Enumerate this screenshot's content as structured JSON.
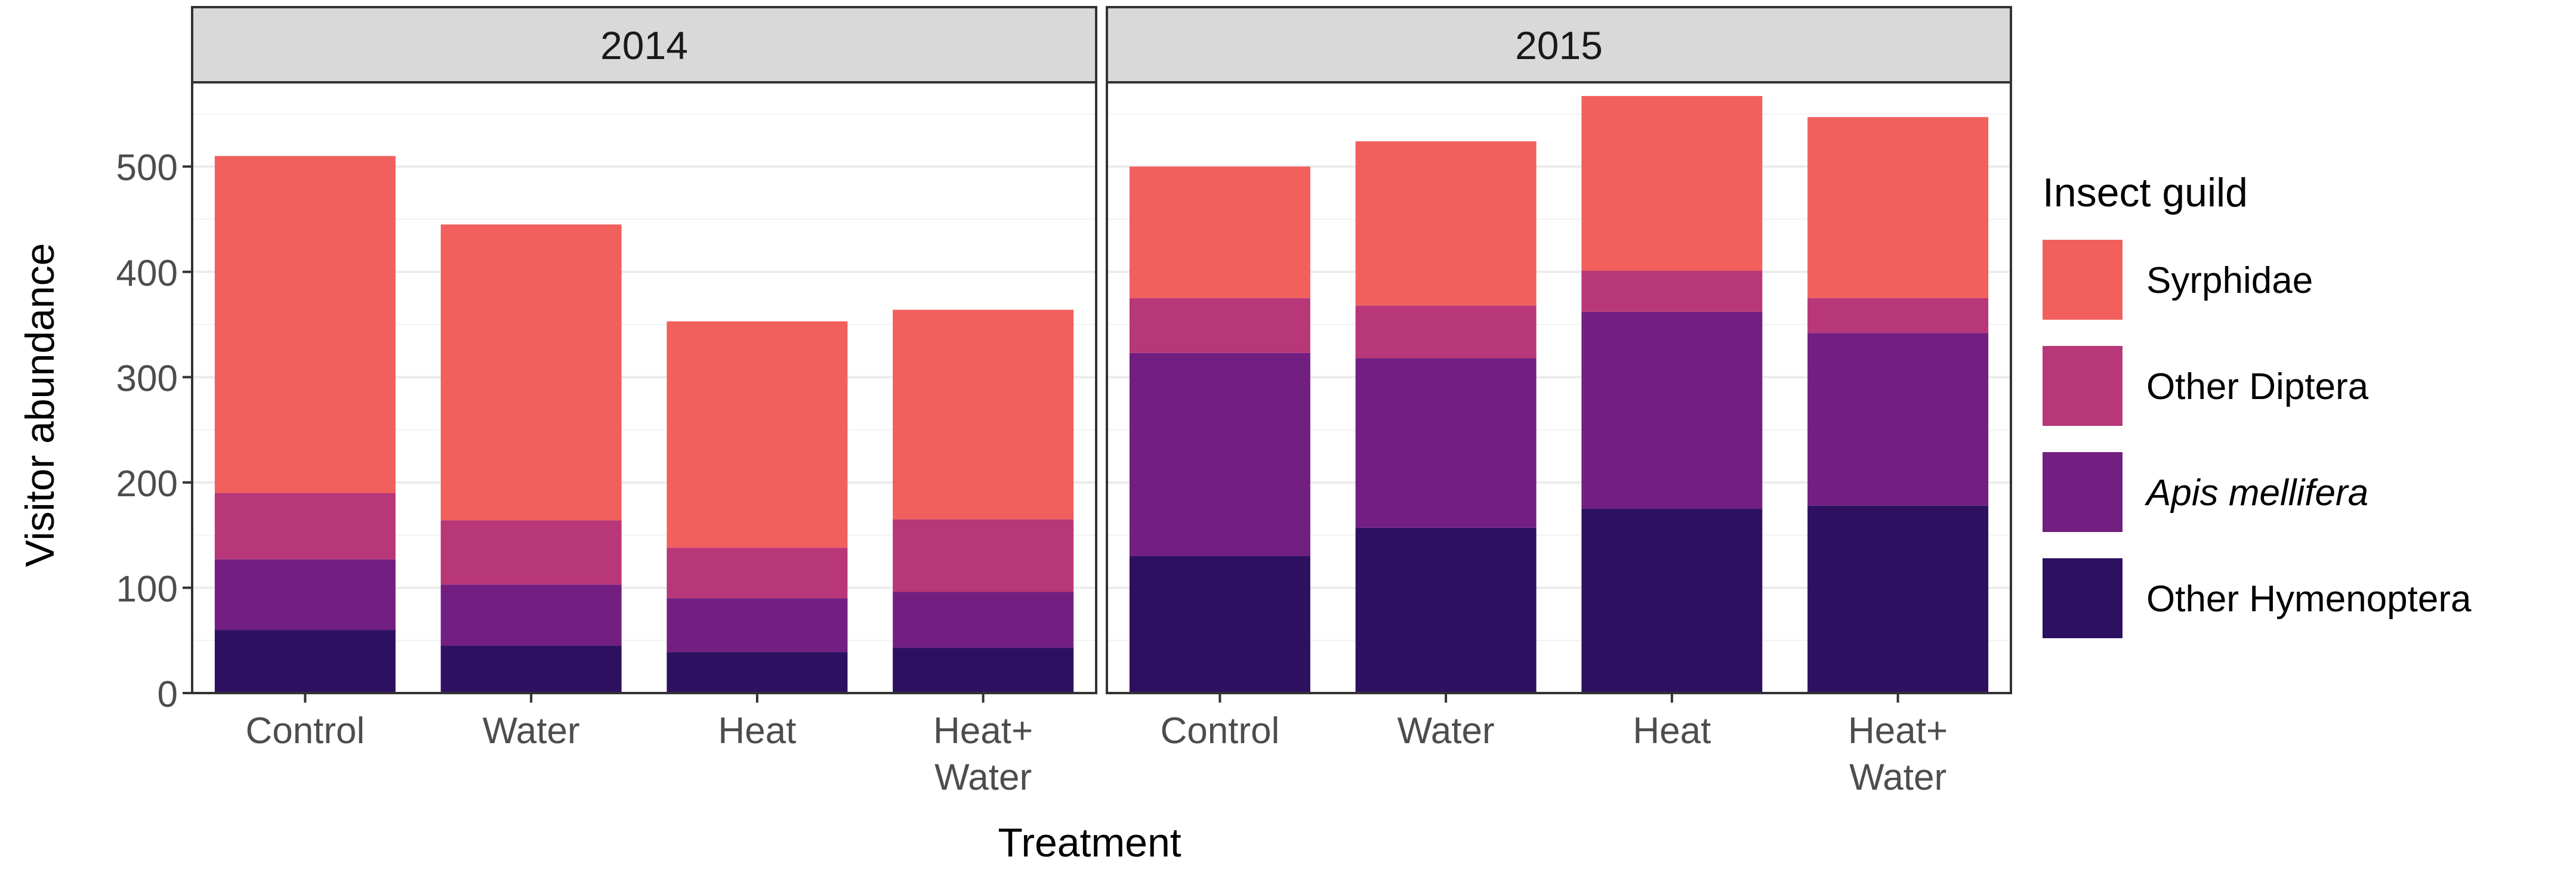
{
  "chart_data": {
    "type": "bar",
    "stacked": true,
    "xlabel": "Treatment",
    "ylabel": "Visitor abundance",
    "ylim": [
      0,
      580
    ],
    "yticks": [
      0,
      100,
      200,
      300,
      400,
      500
    ],
    "categories": [
      [
        "Control"
      ],
      [
        "Water"
      ],
      [
        "Heat"
      ],
      [
        "Heat+",
        "Water"
      ]
    ],
    "legend": {
      "title": "Insect guild",
      "position": "right",
      "entries": [
        {
          "name": "Syrphidae",
          "italic": false
        },
        {
          "name": "Other Diptera",
          "italic": false
        },
        {
          "name": "Apis mellifera",
          "italic": true
        },
        {
          "name": "Other Hymenoptera",
          "italic": false
        }
      ]
    },
    "colors": {
      "Other Hymenoptera": "#2d1160",
      "Apis mellifera": "#721f81",
      "Other Diptera": "#b73779",
      "Syrphidae": "#f1605d",
      "strip": "#d9d9d9",
      "gridline": "#ebebeb",
      "border": "#333333"
    },
    "series_order_bottom_up": [
      "Other Hymenoptera",
      "Apis mellifera",
      "Other Diptera",
      "Syrphidae"
    ],
    "panels": [
      {
        "label": "2014",
        "series": [
          {
            "name": "Other Hymenoptera",
            "values": [
              60,
              45,
              39,
              43
            ]
          },
          {
            "name": "Apis mellifera",
            "values": [
              67,
              58,
              51,
              53
            ]
          },
          {
            "name": "Other Diptera",
            "values": [
              63,
              61,
              48,
              69
            ]
          },
          {
            "name": "Syrphidae",
            "values": [
              320,
              281,
              215,
              199
            ]
          }
        ]
      },
      {
        "label": "2015",
        "series": [
          {
            "name": "Other Hymenoptera",
            "values": [
              130,
              157,
              175,
              178
            ]
          },
          {
            "name": "Apis mellifera",
            "values": [
              193,
              161,
              187,
              164
            ]
          },
          {
            "name": "Other Diptera",
            "values": [
              52,
              50,
              39,
              33
            ]
          },
          {
            "name": "Syrphidae",
            "values": [
              125,
              156,
              166,
              172
            ]
          }
        ]
      }
    ]
  }
}
